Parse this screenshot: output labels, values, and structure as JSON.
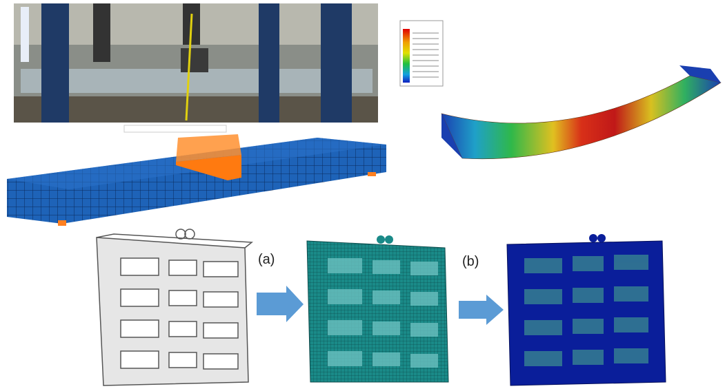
{
  "labels": {
    "a": "(a)",
    "b": "(b)"
  }
}
